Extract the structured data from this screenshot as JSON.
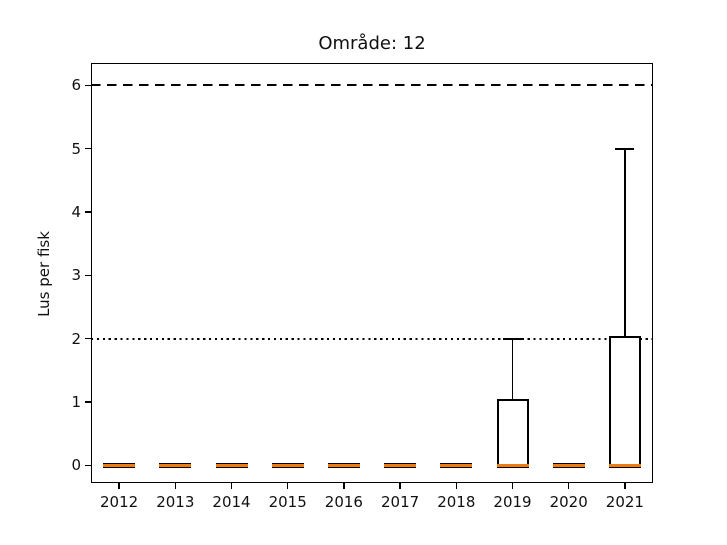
{
  "chart_data": {
    "type": "boxplot",
    "title": "Område: 12",
    "xlabel": "",
    "ylabel": "Lus per fisk",
    "categories": [
      "2012",
      "2013",
      "2014",
      "2015",
      "2016",
      "2017",
      "2018",
      "2019",
      "2020",
      "2021"
    ],
    "yticks": [
      0,
      1,
      2,
      3,
      4,
      5,
      6
    ],
    "ylim": [
      -0.28,
      6.35
    ],
    "grid": false,
    "legend_position": "none",
    "boxes": [
      {
        "category": "2012",
        "whisker_low": 0,
        "q1": 0,
        "median": 0,
        "q3": 0,
        "whisker_high": 0
      },
      {
        "category": "2013",
        "whisker_low": 0,
        "q1": 0,
        "median": 0,
        "q3": 0,
        "whisker_high": 0
      },
      {
        "category": "2014",
        "whisker_low": 0,
        "q1": 0,
        "median": 0,
        "q3": 0,
        "whisker_high": 0
      },
      {
        "category": "2015",
        "whisker_low": 0,
        "q1": 0,
        "median": 0,
        "q3": 0,
        "whisker_high": 0
      },
      {
        "category": "2016",
        "whisker_low": 0,
        "q1": 0,
        "median": 0,
        "q3": 0,
        "whisker_high": 0
      },
      {
        "category": "2017",
        "whisker_low": 0,
        "q1": 0,
        "median": 0,
        "q3": 0,
        "whisker_high": 0
      },
      {
        "category": "2018",
        "whisker_low": 0,
        "q1": 0,
        "median": 0,
        "q3": 0,
        "whisker_high": 0
      },
      {
        "category": "2019",
        "whisker_low": 0,
        "q1": 0,
        "median": 0,
        "q3": 1,
        "whisker_high": 2
      },
      {
        "category": "2020",
        "whisker_low": 0,
        "q1": 0,
        "median": 0,
        "q3": 0,
        "whisker_high": 0
      },
      {
        "category": "2021",
        "whisker_low": 0,
        "q1": 0,
        "median": 0,
        "q3": 2,
        "whisker_high": 5
      }
    ],
    "reference_lines": [
      {
        "y": 6,
        "style": "dashed",
        "color": "#000000"
      },
      {
        "y": 2,
        "style": "dotted",
        "color": "#000000"
      }
    ],
    "colors": {
      "median": "#ee7c11",
      "box_edge": "#000000",
      "whisker": "#000000",
      "background": "#ffffff"
    }
  }
}
